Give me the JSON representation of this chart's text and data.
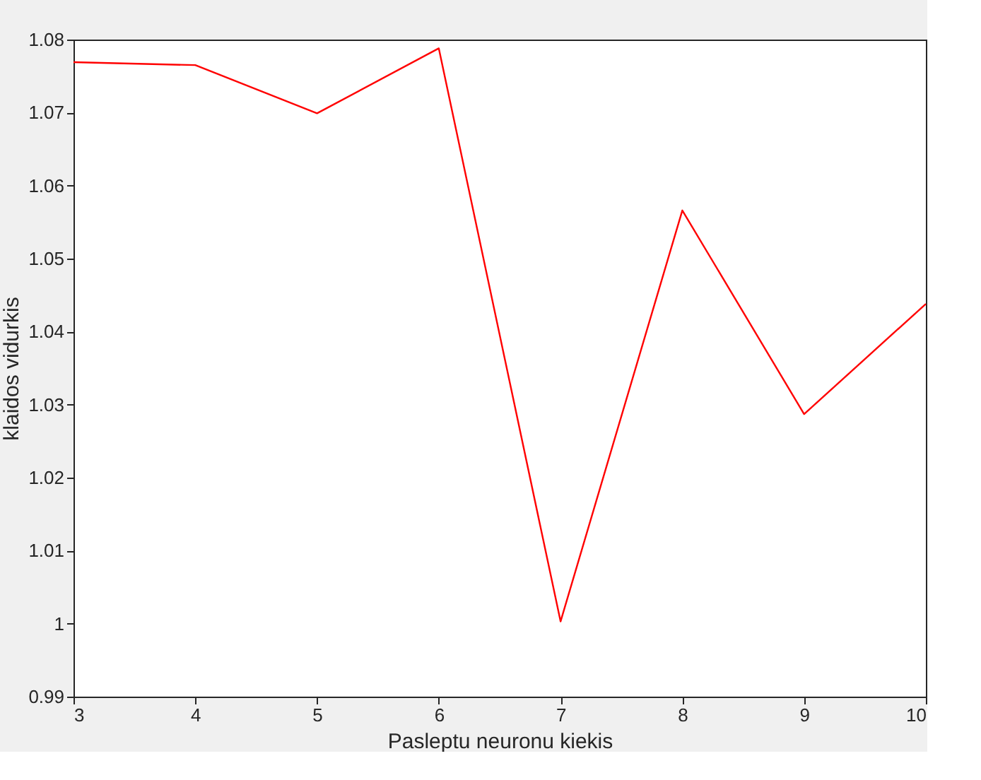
{
  "chart_data": {
    "type": "line",
    "xlabel": "Pasleptu neuronu kiekis",
    "ylabel": "klaidos vidurkis",
    "x": [
      3,
      4,
      5,
      6,
      7,
      8,
      9,
      10
    ],
    "series": [
      {
        "color": "#ff0000",
        "values": [
          1.0769,
          1.0765,
          1.0699,
          1.0788,
          1.0003,
          1.0566,
          1.0287,
          1.0438
        ]
      }
    ],
    "xlim": [
      3,
      10
    ],
    "xticks": [
      3,
      4,
      5,
      6,
      7,
      8,
      9,
      10
    ],
    "ylim": [
      0.99,
      1.08
    ],
    "yticks": [
      0.99,
      1,
      1.01,
      1.02,
      1.03,
      1.04,
      1.05,
      1.06,
      1.07,
      1.08
    ],
    "grid": false,
    "legend": false,
    "marker": "none",
    "line_style": "solid"
  }
}
